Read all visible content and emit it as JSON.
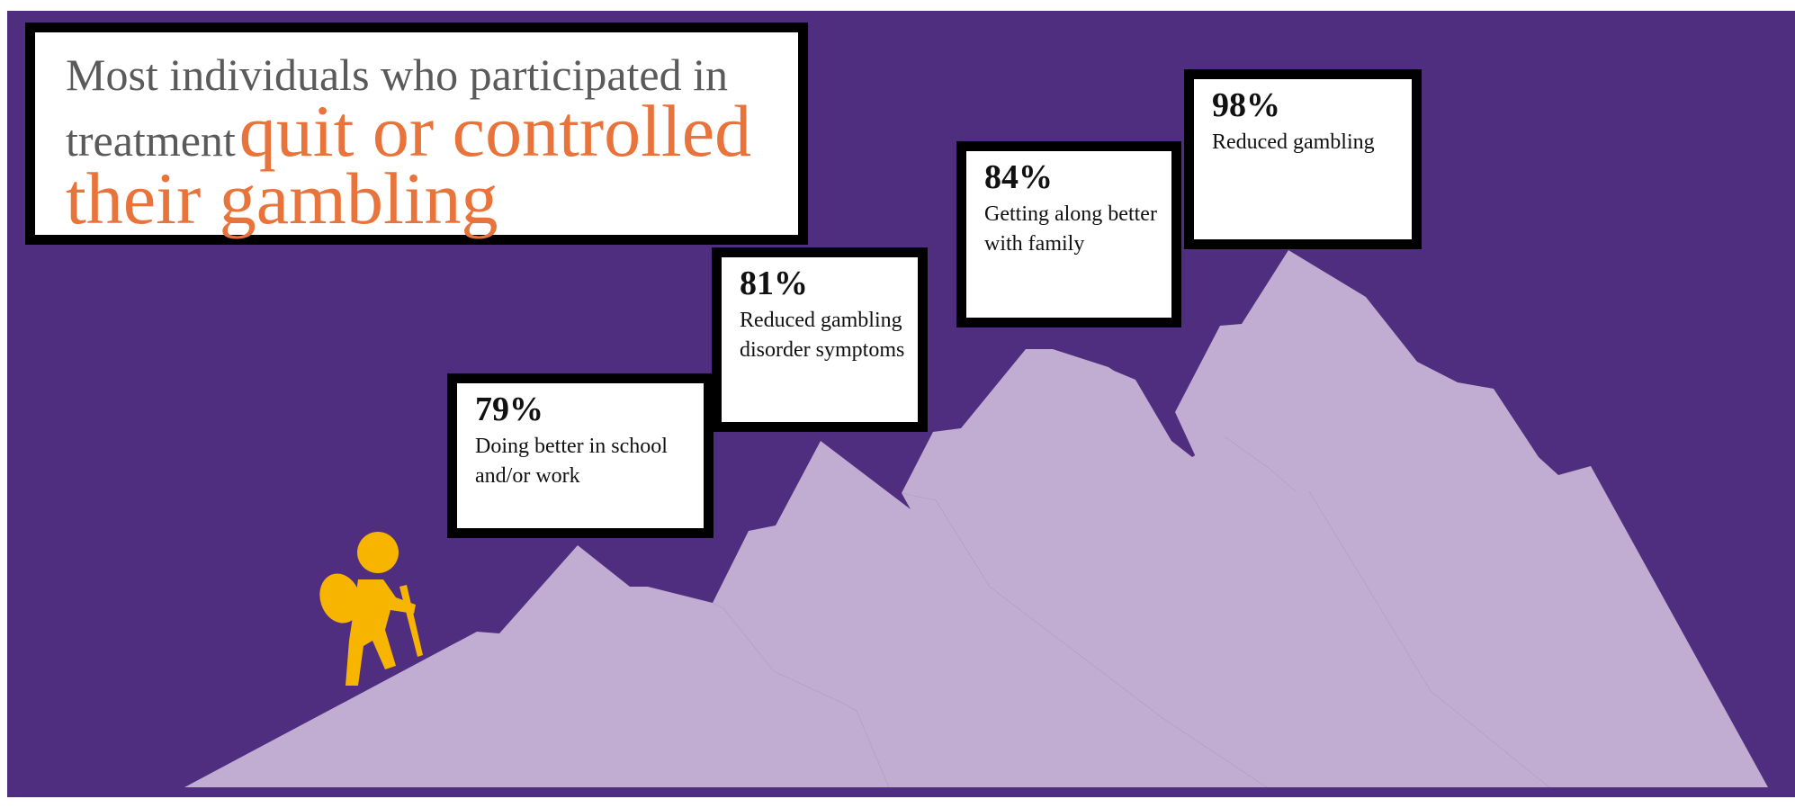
{
  "colors": {
    "background": "#4f2d7f",
    "mountain": "#c1acd2",
    "hiker": "#f7b500",
    "headline_gray": "#5a5a5a",
    "headline_orange": "#e8743b",
    "box_border": "#000000"
  },
  "headline": {
    "lead_line1": "Most individuals who participated in",
    "lead_line2": "treatment",
    "accent": "quit or controlled their gambling"
  },
  "stats": [
    {
      "percent": "79%",
      "label": "Doing better in school and/or work"
    },
    {
      "percent": "81%",
      "label": "Reduced gambling disorder symptoms"
    },
    {
      "percent": "84%",
      "label": "Getting along better with family"
    },
    {
      "percent": "98%",
      "label": "Reduced gambling"
    }
  ],
  "icons": {
    "hiker": "hiker-icon"
  }
}
